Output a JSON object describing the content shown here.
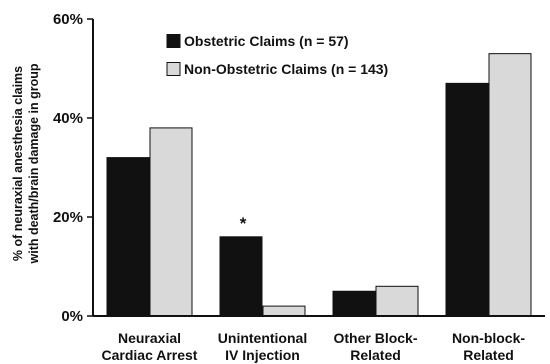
{
  "chart_data": {
    "type": "bar",
    "title": "",
    "xlabel": "",
    "ylabel": "% of neuraxial anesthesia claims with death/brain damage in group",
    "ylabel_lines": [
      "% of neuraxial anesthesia claims",
      "with death/brain damage in group"
    ],
    "ylim": [
      0,
      60
    ],
    "yticks": [
      "0%",
      "20%",
      "40%",
      "60%"
    ],
    "ytick_values": [
      0,
      20,
      40,
      60
    ],
    "grid": false,
    "legend_position": "top-center",
    "categories": [
      "Neuraxial Cardiac Arrest",
      "Unintentional IV Injection",
      "Other Block-Related",
      "Non-block-Related"
    ],
    "category_lines": [
      [
        "Neuraxial",
        "Cardiac Arrest"
      ],
      [
        "Unintentional",
        "IV Injection"
      ],
      [
        "Other Block-",
        "Related"
      ],
      [
        "Non-block-",
        "Related"
      ]
    ],
    "series": [
      {
        "name": "Obstetric Claims (n = 57)",
        "color": "#111111",
        "values": [
          32,
          16,
          5,
          47
        ]
      },
      {
        "name": "Non-Obstetric Claims (n = 143)",
        "color": "#d9d9d9",
        "values": [
          38,
          2,
          6,
          53
        ]
      }
    ],
    "annotations": [
      {
        "text": "*",
        "category_index": 1,
        "series_index": 0
      }
    ]
  }
}
